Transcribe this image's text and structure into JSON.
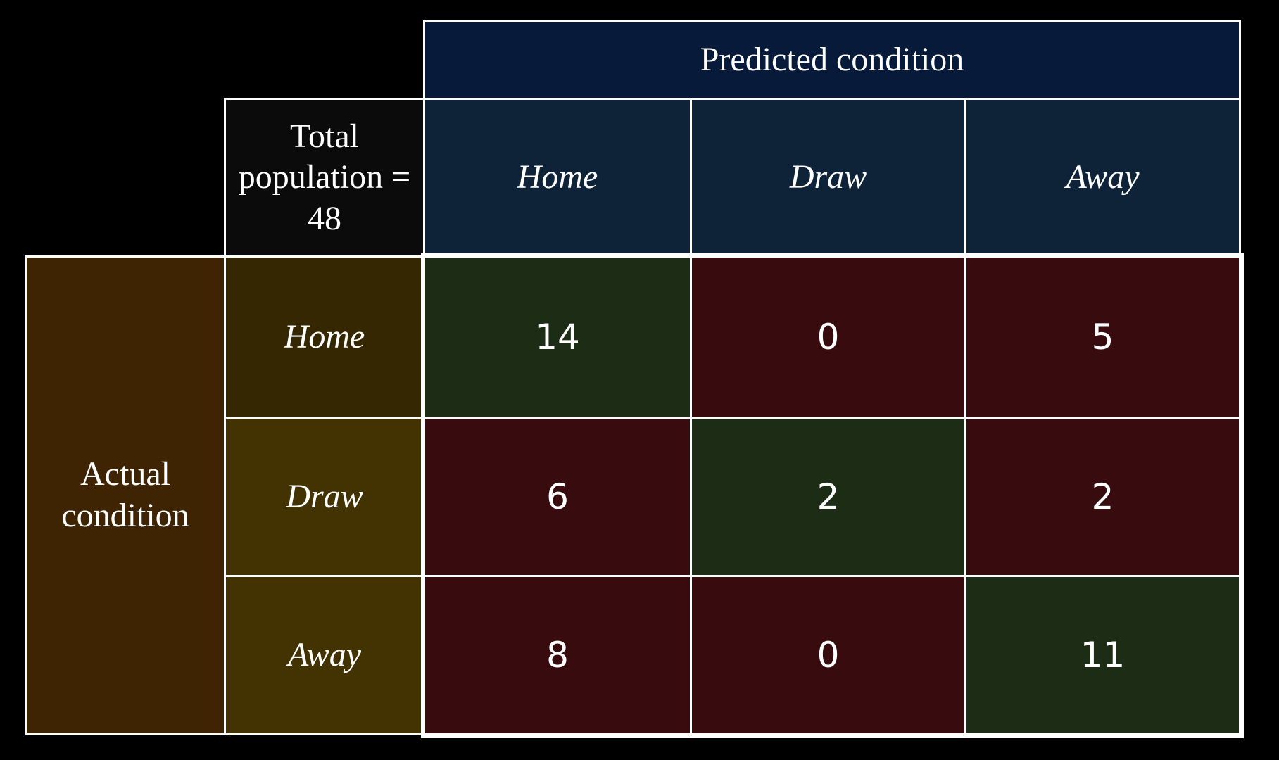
{
  "chart_data": {
    "type": "table",
    "title": "",
    "predicted_label": "Predicted condition",
    "actual_label": "Actual condition",
    "total_population_label": "Total population = 48",
    "total_population": 48,
    "categories": [
      "Home",
      "Draw",
      "Away"
    ],
    "matrix": [
      [
        14,
        0,
        5
      ],
      [
        6,
        2,
        2
      ],
      [
        8,
        0,
        11
      ]
    ]
  },
  "colors": {
    "background": "#000000",
    "predicted_header": "#071a3a",
    "predicted_category": "#0e2238",
    "total_population": "#0b0b0b",
    "actual_header": "#3f2404",
    "actual_category_home": "#352702",
    "actual_category_other": "#433302",
    "correct": "#1c2c15",
    "incorrect": "#380c0f",
    "border": "#ffffff"
  }
}
